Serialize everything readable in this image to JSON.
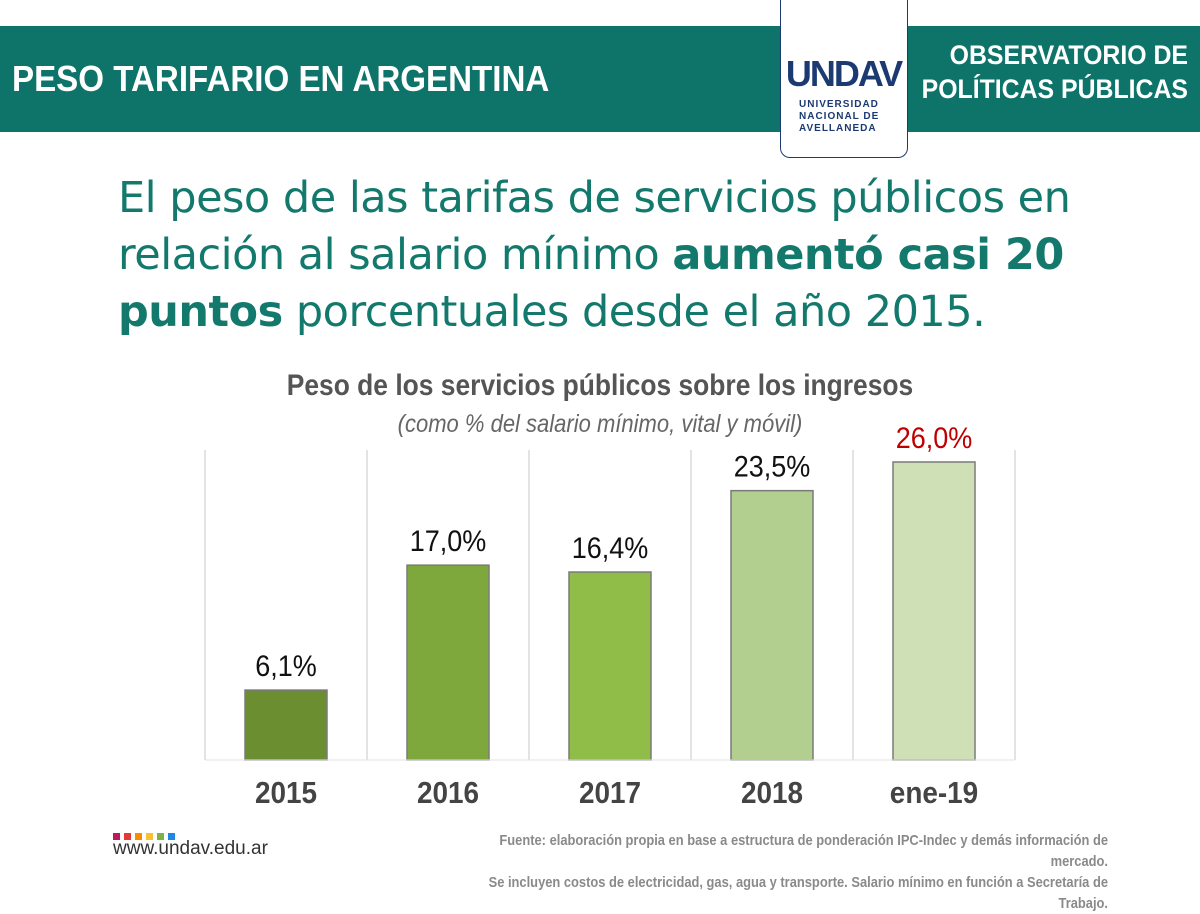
{
  "header": {
    "title": "PESO TARIFARIO EN ARGENTINA",
    "observatory_line1": "OBSERVATORIO DE",
    "observatory_line2": "POLÍTICAS PÚBLICAS"
  },
  "logo": {
    "wordmark": "UNDAV",
    "line1": "UNIVERSIDAD",
    "line2": "NACIONAL DE",
    "line3": "AVELLANEDA"
  },
  "headline": {
    "part1": "El peso de las tarifas de servicios públicos en relación al salario mínimo ",
    "bold": "aumentó casi 20 puntos",
    "part2": " porcentuales desde el año 2015."
  },
  "chart_data": {
    "type": "bar",
    "title": "Peso de los servicios públicos sobre los ingresos",
    "subtitle": "(como % del salario mínimo, vital y móvil)",
    "categories": [
      "2015",
      "2016",
      "2017",
      "2018",
      "ene-19"
    ],
    "values": [
      6.1,
      17.0,
      16.4,
      23.5,
      26.0
    ],
    "value_labels": [
      "6,1%",
      "17,0%",
      "16,4%",
      "23,5%",
      "26,0%"
    ],
    "bar_colors": [
      "#6b8e31",
      "#7fa83c",
      "#8fbd48",
      "#b2cf8f",
      "#cfe0b7"
    ],
    "label_colors": [
      "#111111",
      "#111111",
      "#111111",
      "#111111",
      "#c00000"
    ],
    "ylim": [
      0,
      30
    ],
    "grid": true
  },
  "footer": {
    "website": "www.undav.edu.ar",
    "source_line1": "Fuente: elaboración propia en base a estructura de ponderación IPC-Indec y demás información de mercado.",
    "source_line2": "Se incluyen costos de electricidad, gas, agua y transporte. Salario mínimo en función a Secretaría de Trabajo.",
    "dot_colors": [
      "#c2185b",
      "#e53935",
      "#fb8c00",
      "#fbc02d",
      "#7cb342",
      "#1e88e5"
    ]
  }
}
